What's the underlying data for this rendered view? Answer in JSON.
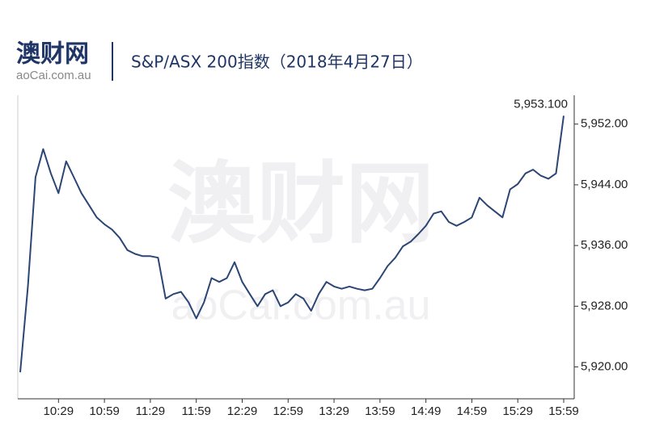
{
  "header": {
    "logo": "澳财网",
    "site": "aoCai.com.au"
  },
  "watermark": {
    "logo": "澳财网",
    "site": "aoCai.com.au"
  },
  "chart_data": {
    "type": "line",
    "title": "S&P/ASX 200指数（2018年4月27日）",
    "categories": [
      null,
      null,
      null,
      null,
      null,
      "10:29",
      null,
      null,
      null,
      null,
      null,
      "10:59",
      null,
      null,
      null,
      null,
      null,
      "11:29",
      null,
      null,
      null,
      null,
      null,
      "11:59",
      null,
      null,
      null,
      null,
      null,
      "12:29",
      null,
      null,
      null,
      null,
      null,
      "12:59",
      null,
      null,
      null,
      null,
      null,
      "13:29",
      null,
      null,
      null,
      null,
      null,
      "13:59",
      null,
      null,
      null,
      null,
      null,
      "14:49",
      null,
      null,
      null,
      null,
      null,
      "14:59",
      null,
      null,
      null,
      null,
      null,
      "15:29",
      null,
      null,
      null,
      null,
      null,
      "15:59"
    ],
    "series": [
      {
        "color": "#2b4674",
        "values": [
          5919.3,
          5930.6,
          5945,
          5948.7,
          5945.5,
          5942.9,
          5947.1,
          5945,
          5942.9,
          5941.3,
          5939.7,
          5938.8,
          5938.1,
          5937,
          5935.4,
          5934.9,
          5934.6,
          5934.6,
          5934.4,
          5929,
          5929.6,
          5929.9,
          5928.5,
          5926.4,
          5928.5,
          5931.7,
          5931.2,
          5931.7,
          5933.8,
          5931.2,
          5929.6,
          5928,
          5929.6,
          5930.1,
          5928,
          5928.5,
          5929.6,
          5929,
          5927.4,
          5929.6,
          5931.2,
          5930.6,
          5930.3,
          5930.6,
          5930.3,
          5930.1,
          5930.3,
          5931.7,
          5933.3,
          5934.4,
          5935.9,
          5936.5,
          5937.5,
          5938.6,
          5940.2,
          5940.5,
          5939.1,
          5938.6,
          5939.1,
          5939.7,
          5942.3,
          5941.3,
          5940.5,
          5939.7,
          5943.4,
          5944.1,
          5945.5,
          5946,
          5945.2,
          5944.8,
          5945.5,
          5953.1
        ],
        "value_labels": [
          null,
          null,
          null,
          null,
          null,
          null,
          null,
          null,
          null,
          null,
          null,
          null,
          null,
          null,
          null,
          null,
          null,
          null,
          null,
          null,
          null,
          null,
          null,
          null,
          null,
          null,
          null,
          null,
          null,
          null,
          null,
          null,
          null,
          null,
          null,
          null,
          null,
          null,
          null,
          null,
          null,
          null,
          null,
          null,
          null,
          null,
          null,
          null,
          null,
          null,
          null,
          null,
          null,
          null,
          null,
          null,
          null,
          null,
          null,
          null,
          null,
          null,
          null,
          null,
          null,
          null,
          null,
          null,
          null,
          null,
          null,
          "5,953.100"
        ]
      }
    ],
    "ylim": [
      5915.8,
      5955.8
    ],
    "yticks": [
      {
        "value": 5920,
        "label": "5,920.00"
      },
      {
        "value": 5928,
        "label": "5,928.00"
      },
      {
        "value": 5936,
        "label": "5,936.00"
      },
      {
        "value": 5944,
        "label": "5,944.00"
      },
      {
        "value": 5952,
        "label": "5,952.00"
      }
    ],
    "y_axis_side": "right",
    "grid": false
  }
}
